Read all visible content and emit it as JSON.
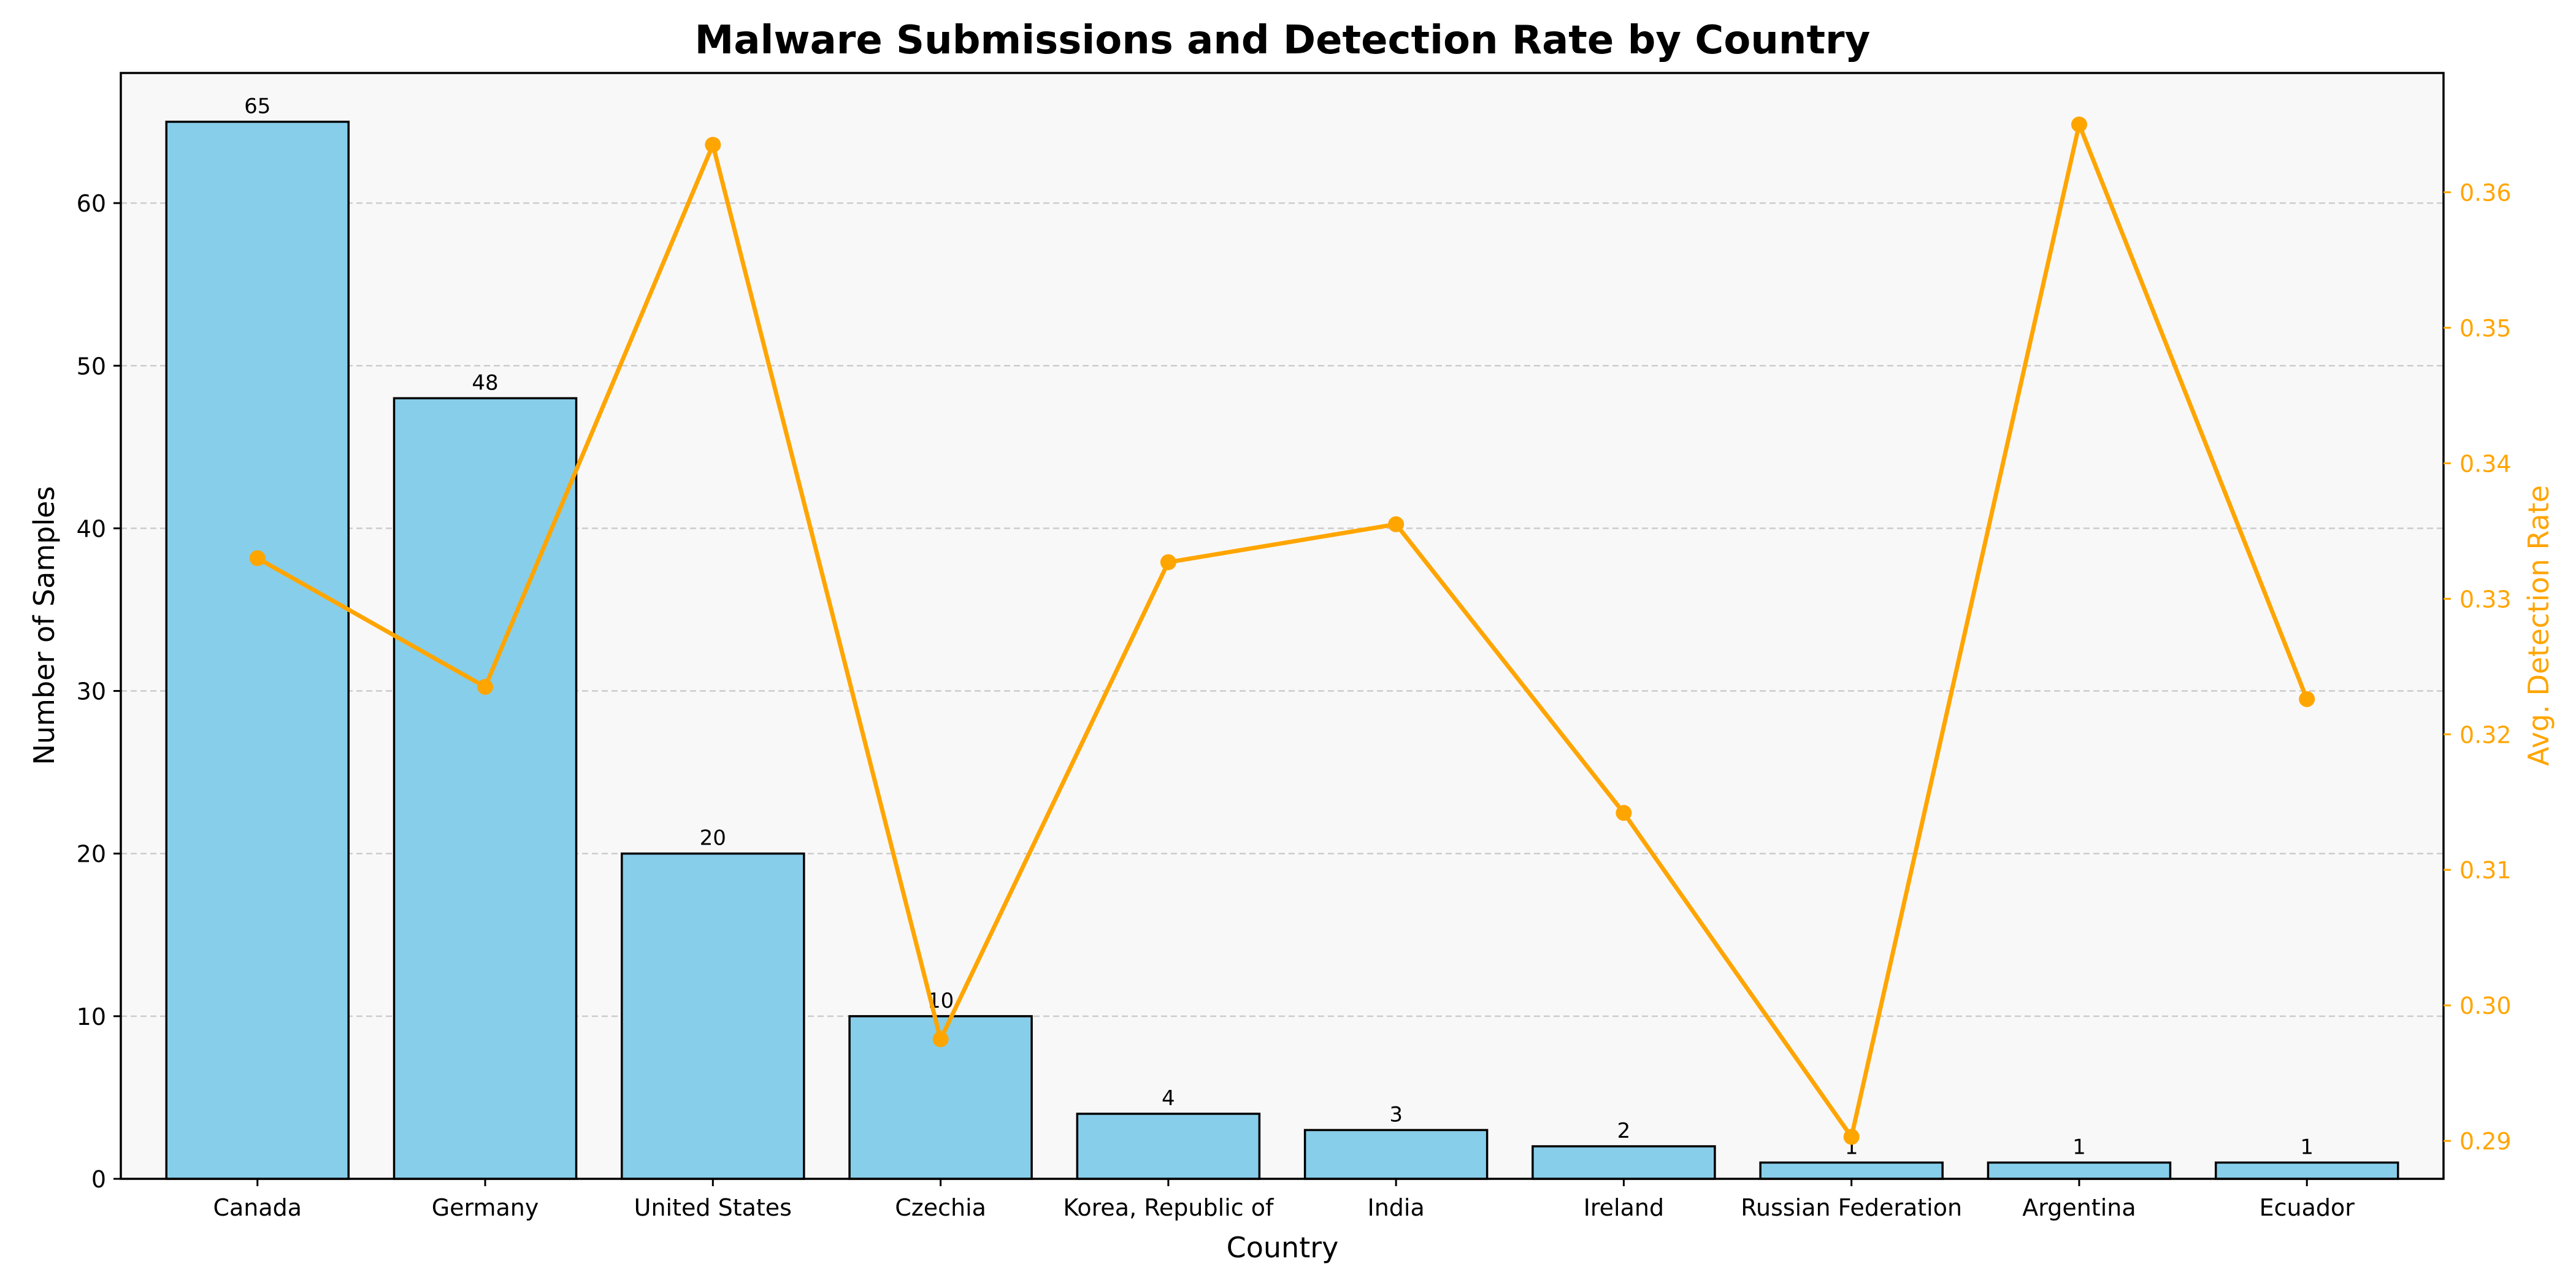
{
  "chart_data": {
    "type": "bar",
    "title": "Malware Submissions and Detection Rate by Country",
    "xlabel": "Country",
    "ylabel": "Number of Samples",
    "y2label": "Avg. Detection Rate",
    "categories": [
      "Canada",
      "Germany",
      "United States",
      "Czechia",
      "Korea, Republic of",
      "India",
      "Ireland",
      "Russian Federation",
      "Argentina",
      "Ecuador"
    ],
    "series": [
      {
        "type": "bar",
        "axis": "left",
        "values": [
          65,
          48,
          20,
          10,
          4,
          3,
          2,
          1,
          1,
          1
        ],
        "data_labels": [
          "65",
          "48",
          "20",
          "10",
          "4",
          "3",
          "2",
          "1",
          "1",
          "1"
        ]
      },
      {
        "type": "line",
        "axis": "right",
        "values": [
          0.333,
          0.3235,
          0.3635,
          0.2975,
          0.3327,
          0.3355,
          0.3142,
          0.2903,
          0.365,
          0.3226
        ]
      }
    ],
    "ylim": [
      0,
      68
    ],
    "y2lim": [
      0.2872,
      0.3688
    ],
    "yticks": [
      0,
      10,
      20,
      30,
      40,
      50,
      60
    ],
    "y2ticks": [
      0.29,
      0.3,
      0.31,
      0.32,
      0.33,
      0.34,
      0.35,
      0.36
    ],
    "y2tick_labels": [
      "0.29",
      "0.30",
      "0.31",
      "0.32",
      "0.33",
      "0.34",
      "0.35",
      "0.36"
    ],
    "grid": "y-dashed",
    "colors": {
      "bar_fill": "#87ceeb",
      "bar_edge": "#000000",
      "line": "#ffa500",
      "plot_bg": "#f8f8f8",
      "grid": "#cccccc",
      "right_axis": "#ffa500"
    }
  }
}
